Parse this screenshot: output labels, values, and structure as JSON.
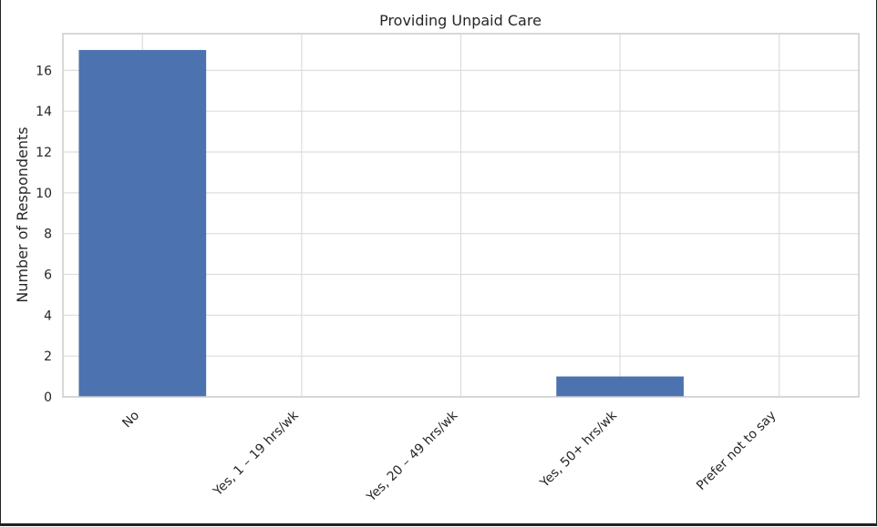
{
  "chart_data": {
    "type": "bar",
    "title": "Providing Unpaid Care",
    "xlabel": "",
    "ylabel": "Number of Respondents",
    "categories": [
      "No",
      "Yes, 1 – 19 hrs/wk",
      "Yes, 20 – 49 hrs/wk",
      "Yes, 50+ hrs/wk",
      "Prefer not to say"
    ],
    "values": [
      17,
      0,
      0,
      1,
      0
    ],
    "ylim": [
      0,
      17.8
    ],
    "yticks": [
      0,
      2,
      4,
      6,
      8,
      10,
      12,
      14,
      16
    ],
    "grid": true,
    "legend": "none",
    "bar_color": "#4c72b0",
    "grid_color": "#dddddd",
    "axis_color": "#cccccc"
  }
}
